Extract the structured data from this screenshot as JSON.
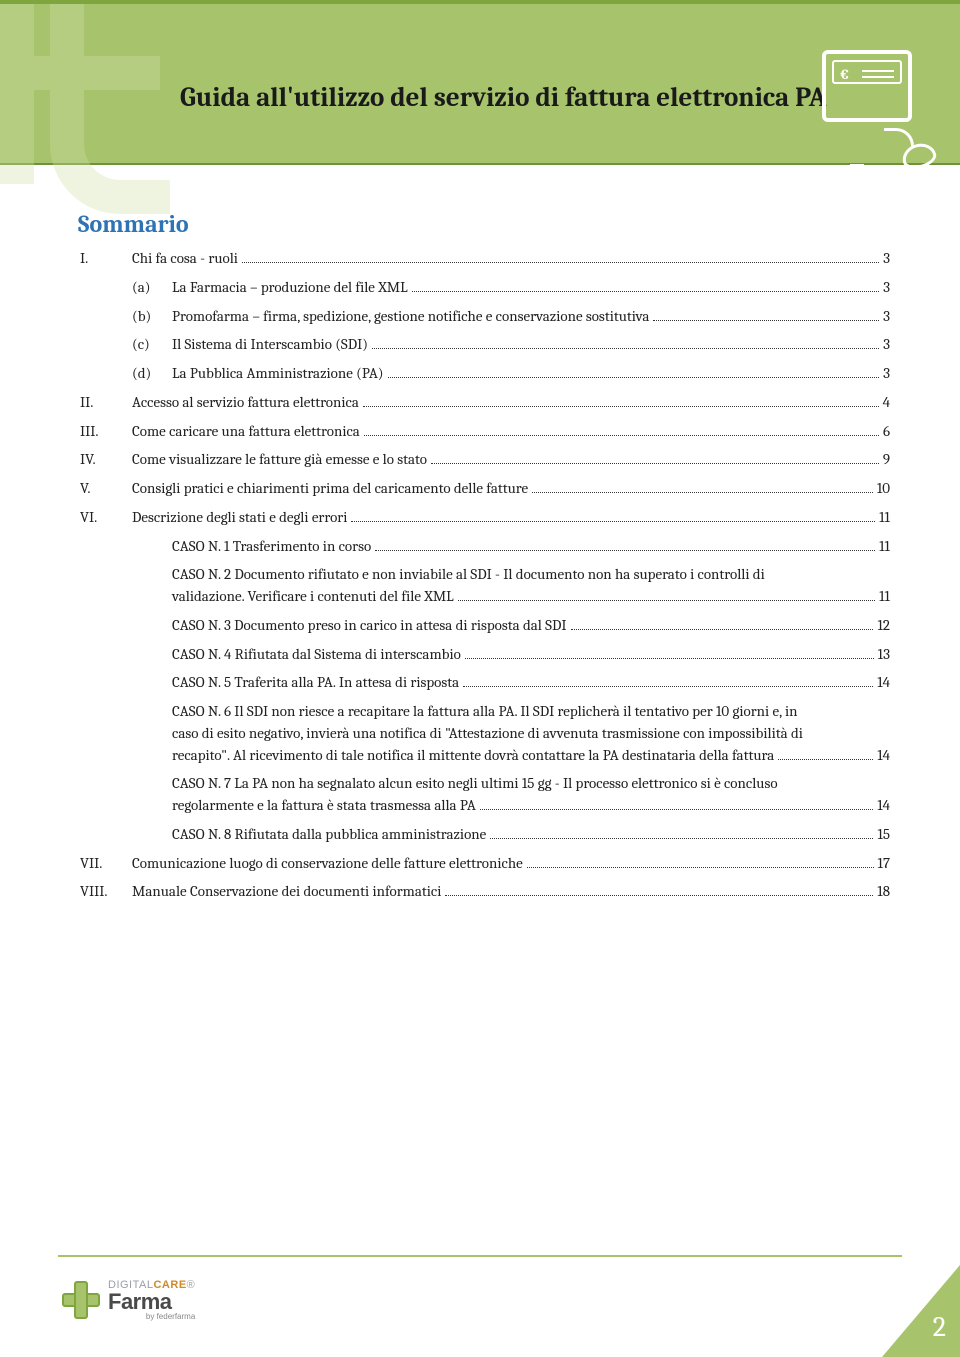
{
  "colors": {
    "band": "#a7c46c",
    "band_border": "#7fa63e",
    "heading": "#2e74b5",
    "text": "#222222",
    "page_bg": "#ffffff",
    "pagenum_fg": "#ffffff"
  },
  "fonts": {
    "serif": "Cambria, Georgia, serif",
    "title_size_pt": 20
  },
  "page_number": "2",
  "header": {
    "title": "Guida all'utilizzo del servizio di fattura elettronica PA"
  },
  "footer_logo": {
    "top_a": "DIGITAL",
    "top_b": "CARE",
    "reg": "®",
    "main": "Farma",
    "by": "by federfarma"
  },
  "toc": {
    "heading": "Sommario",
    "items": [
      {
        "num": "I.",
        "label": "Chi fa cosa - ruoli",
        "page": "3",
        "level": 1
      },
      {
        "num": "(a)",
        "label": "La Farmacia – produzione del file XML",
        "page": "3",
        "level": 2
      },
      {
        "num": "(b)",
        "label": "Promofarma – firma,  spedizione, gestione notifiche e conservazione sostitutiva",
        "page": "3",
        "level": 2
      },
      {
        "num": "(c)",
        "label": "Il Sistema di Interscambio (SDI)",
        "page": "3",
        "level": 2
      },
      {
        "num": "(d)",
        "label": "La Pubblica Amministrazione (PA)",
        "page": "3",
        "level": 2
      },
      {
        "num": "II.",
        "label": "Accesso al servizio fattura elettronica",
        "page": "4",
        "level": 1
      },
      {
        "num": "III.",
        "label": "Come caricare una fattura elettronica",
        "page": "6",
        "level": 1
      },
      {
        "num": "IV.",
        "label": "Come visualizzare le fatture già emesse e lo stato",
        "page": "9",
        "level": 1
      },
      {
        "num": "V.",
        "label": "Consigli pratici e chiarimenti prima del caricamento delle fatture",
        "page": "10",
        "level": 1
      },
      {
        "num": "VI.",
        "label": "Descrizione degli stati e degli errori",
        "page": "11",
        "level": 1
      },
      {
        "num": "",
        "label": "CASO N. 1 Trasferimento in corso",
        "page": "11",
        "level": 3
      },
      {
        "num": "",
        "label_lines": [
          "CASO N. 2 Documento rifiutato e non inviabile al SDI - Il documento non ha superato i controlli di",
          "validazione. Verificare i contenuti del file XML"
        ],
        "page": "11",
        "level": 3
      },
      {
        "num": "",
        "label": "CASO N. 3 Documento preso in carico in attesa di risposta dal SDI",
        "page": "12",
        "level": 3
      },
      {
        "num": "",
        "label": "CASO N. 4 Rifiutata dal Sistema di interscambio",
        "page": "13",
        "level": 3
      },
      {
        "num": "",
        "label": "CASO N. 5 Traferita alla PA. In attesa di risposta",
        "page": "14",
        "level": 3
      },
      {
        "num": "",
        "label_lines": [
          "CASO N. 6 Il SDI non riesce a recapitare la fattura alla PA. Il SDI replicherà il tentativo per 10 giorni e, in",
          "caso di esito negativo, invierà una notifica di \"Attestazione di avvenuta trasmissione con impossibilità di",
          "recapito\". Al ricevimento di tale notifica il mittente dovrà contattare la PA destinataria della fattura"
        ],
        "page": "14",
        "level": 3
      },
      {
        "num": "",
        "label_lines": [
          "CASO N. 7 La PA non ha segnalato alcun esito negli ultimi 15 gg - Il processo elettronico si è concluso",
          "regolarmente e la fattura è stata trasmessa alla PA"
        ],
        "page": "14",
        "level": 3
      },
      {
        "num": "",
        "label": "CASO N. 8 Rifiutata dalla pubblica amministrazione",
        "page": "15",
        "level": 3
      },
      {
        "num": "VII.",
        "label": "Comunicazione luogo di conservazione delle fatture elettroniche",
        "page": "17",
        "level": 1
      },
      {
        "num": "VIII.",
        "label": "Manuale Conservazione dei documenti informatici",
        "page": "18",
        "level": 1
      }
    ]
  }
}
